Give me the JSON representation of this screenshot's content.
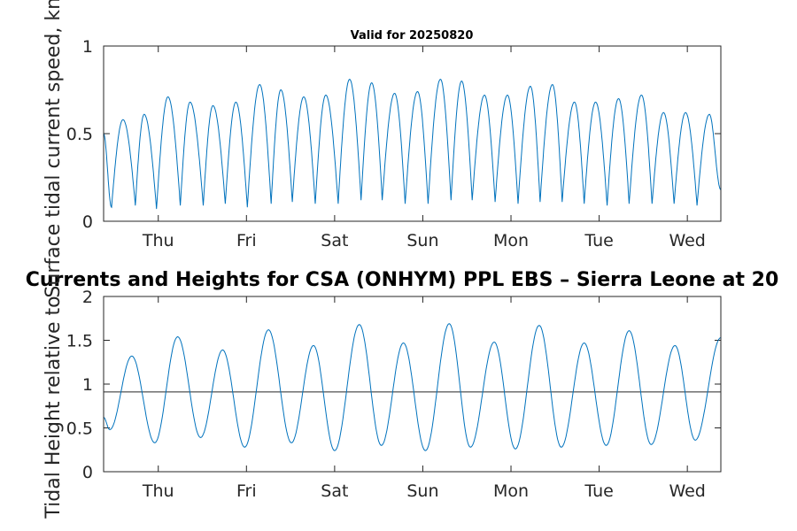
{
  "chart_data": [
    {
      "type": "line",
      "title": "Valid for 20250820",
      "ylabel": "Surface tidal current speed, knots",
      "xlabel": "",
      "xlim": [
        0,
        7
      ],
      "ylim": [
        0,
        1
      ],
      "yticks": [
        0,
        0.5,
        1
      ],
      "ytick_labels": [
        "0",
        "0.5",
        "1"
      ],
      "xticks": [
        0.62,
        1.62,
        2.62,
        3.62,
        4.62,
        5.62,
        6.62
      ],
      "xtick_labels": [
        "Thu",
        "Fri",
        "Sat",
        "Sun",
        "Mon",
        "Tue",
        "Wed"
      ],
      "start_value": 0.5,
      "end_value": 0.18,
      "series": [
        {
          "color": "#0072BD",
          "troughs": [
            [
              0.09,
              0.08
            ],
            [
              0.36,
              0.09
            ],
            [
              0.6,
              0.07
            ],
            [
              0.87,
              0.09
            ],
            [
              1.13,
              0.09
            ],
            [
              1.38,
              0.1
            ],
            [
              1.63,
              0.08
            ],
            [
              1.9,
              0.1
            ],
            [
              2.14,
              0.11
            ],
            [
              2.4,
              0.1
            ],
            [
              2.66,
              0.1
            ],
            [
              2.92,
              0.12
            ],
            [
              3.16,
              0.12
            ],
            [
              3.42,
              0.1
            ],
            [
              3.68,
              0.1
            ],
            [
              3.94,
              0.12
            ],
            [
              4.18,
              0.12
            ],
            [
              4.44,
              0.11
            ],
            [
              4.7,
              0.1
            ],
            [
              4.95,
              0.11
            ],
            [
              5.2,
              0.11
            ],
            [
              5.45,
              0.1
            ],
            [
              5.71,
              0.09
            ],
            [
              5.96,
              0.1
            ],
            [
              6.22,
              0.1
            ],
            [
              6.47,
              0.1
            ],
            [
              6.73,
              0.09
            ]
          ],
          "peaks": [
            [
              0.22,
              0.58
            ],
            [
              0.46,
              0.61
            ],
            [
              0.73,
              0.71
            ],
            [
              0.98,
              0.68
            ],
            [
              1.24,
              0.66
            ],
            [
              1.5,
              0.68
            ],
            [
              1.77,
              0.78
            ],
            [
              2.01,
              0.75
            ],
            [
              2.27,
              0.71
            ],
            [
              2.52,
              0.72
            ],
            [
              2.79,
              0.81
            ],
            [
              3.04,
              0.79
            ],
            [
              3.3,
              0.73
            ],
            [
              3.56,
              0.74
            ],
            [
              3.82,
              0.81
            ],
            [
              4.06,
              0.8
            ],
            [
              4.32,
              0.72
            ],
            [
              4.58,
              0.72
            ],
            [
              4.84,
              0.77
            ],
            [
              5.09,
              0.78
            ],
            [
              5.34,
              0.68
            ],
            [
              5.58,
              0.68
            ],
            [
              5.84,
              0.7
            ],
            [
              6.1,
              0.72
            ],
            [
              6.35,
              0.62
            ],
            [
              6.6,
              0.62
            ],
            [
              6.87,
              0.61
            ]
          ]
        }
      ]
    },
    {
      "type": "line",
      "title": "Currents and Heights for CSA (ONHYM) PPL EBS  – Sierra Leone at 20",
      "ylabel": "Tidal Height relative to",
      "xlabel": "",
      "xlim": [
        0,
        7
      ],
      "ylim": [
        0,
        2
      ],
      "yticks": [
        0,
        0.5,
        1,
        1.5,
        2
      ],
      "ytick_labels": [
        "0",
        "0.5",
        "1",
        "1.5",
        "2"
      ],
      "xticks": [
        0.62,
        1.62,
        2.62,
        3.62,
        4.62,
        5.62,
        6.62
      ],
      "xtick_labels": [
        "Thu",
        "Fri",
        "Sat",
        "Sun",
        "Mon",
        "Tue",
        "Wed"
      ],
      "reference_line": 0.91,
      "start_value": 0.62,
      "end_value": 1.53,
      "series": [
        {
          "color": "#0072BD",
          "troughs": [
            [
              0.07,
              0.48
            ],
            [
              0.58,
              0.33
            ],
            [
              1.1,
              0.39
            ],
            [
              1.6,
              0.28
            ],
            [
              2.13,
              0.33
            ],
            [
              2.62,
              0.24
            ],
            [
              3.15,
              0.3
            ],
            [
              3.65,
              0.24
            ],
            [
              4.16,
              0.28
            ],
            [
              4.67,
              0.26
            ],
            [
              5.19,
              0.28
            ],
            [
              5.7,
              0.3
            ],
            [
              6.21,
              0.31
            ],
            [
              6.71,
              0.36
            ]
          ],
          "peaks": [
            [
              0.32,
              1.32
            ],
            [
              0.84,
              1.54
            ],
            [
              1.35,
              1.39
            ],
            [
              1.87,
              1.62
            ],
            [
              2.38,
              1.44
            ],
            [
              2.9,
              1.68
            ],
            [
              3.4,
              1.47
            ],
            [
              3.92,
              1.69
            ],
            [
              4.43,
              1.48
            ],
            [
              4.94,
              1.67
            ],
            [
              5.45,
              1.47
            ],
            [
              5.96,
              1.61
            ],
            [
              6.48,
              1.44
            ]
          ]
        }
      ]
    }
  ]
}
